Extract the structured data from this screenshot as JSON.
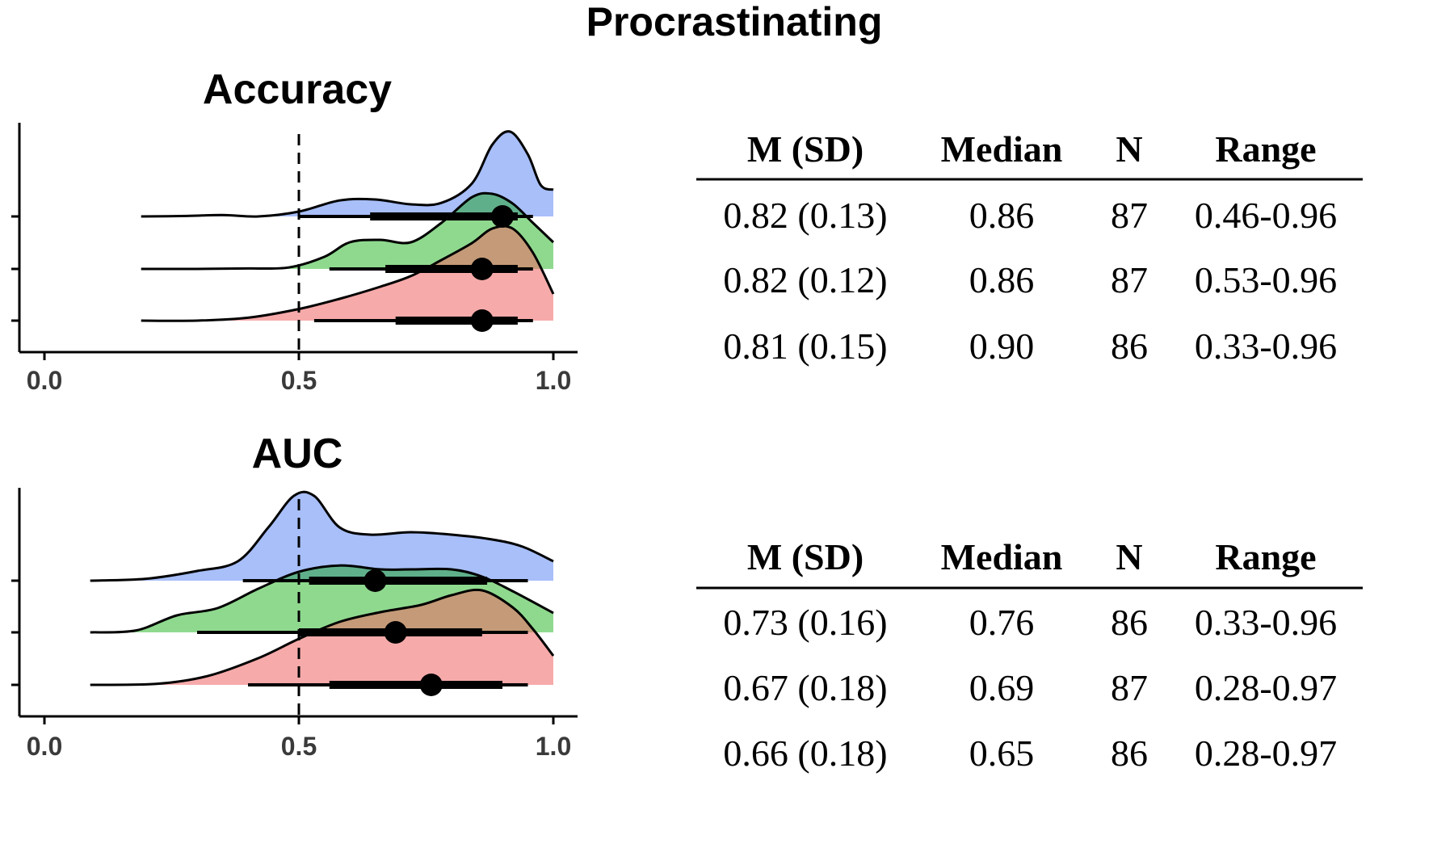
{
  "figure_title": "Procrastinating",
  "colors": {
    "series_top": "#a8bff9",
    "series_middle": "#8fd98f",
    "series_bottom": "#f7aaaa",
    "overlap_top_middle": "#5fb08a",
    "overlap_middle_bottom": "#c49a78",
    "outline": "#000000",
    "reference_line": "#000000"
  },
  "chart_data": [
    {
      "type": "ridgeline",
      "title": "Accuracy",
      "xlim": [
        0.0,
        1.0
      ],
      "x_ticks": [
        "0.0",
        "0.5",
        "1.0"
      ],
      "reference_line_x": 0.5,
      "grid": false,
      "legend": "none",
      "series": [
        {
          "color": "series_top",
          "density": [
            [
              0.19,
              0.0
            ],
            [
              0.28,
              0.01
            ],
            [
              0.35,
              0.03
            ],
            [
              0.42,
              0.0
            ],
            [
              0.5,
              0.1
            ],
            [
              0.58,
              0.33
            ],
            [
              0.65,
              0.35
            ],
            [
              0.72,
              0.25
            ],
            [
              0.78,
              0.28
            ],
            [
              0.84,
              0.68
            ],
            [
              0.88,
              1.48
            ],
            [
              0.915,
              1.75
            ],
            [
              0.95,
              1.28
            ],
            [
              0.975,
              0.65
            ],
            [
              1.0,
              0.55
            ]
          ],
          "point": 0.9,
          "interval_thick": [
            0.64,
            0.93
          ],
          "interval_thin": [
            0.5,
            0.96
          ]
        },
        {
          "color": "series_middle",
          "density": [
            [
              0.19,
              0.0
            ],
            [
              0.3,
              0.0
            ],
            [
              0.4,
              0.01
            ],
            [
              0.48,
              0.03
            ],
            [
              0.55,
              0.25
            ],
            [
              0.6,
              0.55
            ],
            [
              0.66,
              0.6
            ],
            [
              0.72,
              0.55
            ],
            [
              0.78,
              0.95
            ],
            [
              0.84,
              1.48
            ],
            [
              0.88,
              1.55
            ],
            [
              0.92,
              1.35
            ],
            [
              0.96,
              0.95
            ],
            [
              1.0,
              0.55
            ]
          ],
          "point": 0.86,
          "interval_thick": [
            0.67,
            0.93
          ],
          "interval_thin": [
            0.56,
            0.96
          ]
        },
        {
          "color": "series_bottom",
          "density": [
            [
              0.19,
              0.0
            ],
            [
              0.3,
              0.0
            ],
            [
              0.4,
              0.06
            ],
            [
              0.5,
              0.24
            ],
            [
              0.58,
              0.45
            ],
            [
              0.66,
              0.7
            ],
            [
              0.72,
              0.92
            ],
            [
              0.78,
              1.25
            ],
            [
              0.84,
              1.6
            ],
            [
              0.88,
              1.9
            ],
            [
              0.92,
              1.9
            ],
            [
              0.96,
              1.4
            ],
            [
              1.0,
              0.55
            ]
          ],
          "point": 0.86,
          "interval_thick": [
            0.69,
            0.93
          ],
          "interval_thin": [
            0.53,
            0.96
          ]
        }
      ],
      "table": {
        "columns": [
          "M (SD)",
          "Median",
          "N",
          "Range"
        ],
        "rows": [
          [
            "0.82 (0.13)",
            "0.86",
            "87",
            "0.46-0.96"
          ],
          [
            "0.82 (0.12)",
            "0.86",
            "87",
            "0.53-0.96"
          ],
          [
            "0.81 (0.15)",
            "0.90",
            "86",
            "0.33-0.96"
          ]
        ]
      }
    },
    {
      "type": "ridgeline",
      "title": "AUC",
      "xlim": [
        0.0,
        1.0
      ],
      "x_ticks": [
        "0.0",
        "0.5",
        "1.0"
      ],
      "reference_line_x": 0.5,
      "grid": false,
      "legend": "none",
      "series": [
        {
          "color": "series_top",
          "density": [
            [
              0.09,
              0.0
            ],
            [
              0.2,
              0.04
            ],
            [
              0.3,
              0.2
            ],
            [
              0.38,
              0.4
            ],
            [
              0.44,
              1.1
            ],
            [
              0.49,
              1.75
            ],
            [
              0.53,
              1.75
            ],
            [
              0.58,
              1.1
            ],
            [
              0.64,
              0.95
            ],
            [
              0.72,
              1.0
            ],
            [
              0.8,
              0.95
            ],
            [
              0.88,
              0.85
            ],
            [
              0.94,
              0.7
            ],
            [
              1.0,
              0.4
            ]
          ],
          "point": 0.65,
          "interval_thick": [
            0.52,
            0.87
          ],
          "interval_thin": [
            0.39,
            0.95
          ]
        },
        {
          "color": "series_middle",
          "density": [
            [
              0.09,
              0.0
            ],
            [
              0.18,
              0.04
            ],
            [
              0.26,
              0.35
            ],
            [
              0.34,
              0.5
            ],
            [
              0.42,
              0.9
            ],
            [
              0.5,
              1.25
            ],
            [
              0.58,
              1.38
            ],
            [
              0.66,
              1.3
            ],
            [
              0.72,
              1.3
            ],
            [
              0.8,
              1.3
            ],
            [
              0.86,
              1.15
            ],
            [
              0.92,
              0.85
            ],
            [
              1.0,
              0.4
            ]
          ],
          "point": 0.69,
          "interval_thick": [
            0.5,
            0.86
          ],
          "interval_thin": [
            0.3,
            0.95
          ]
        },
        {
          "color": "series_bottom",
          "density": [
            [
              0.09,
              0.0
            ],
            [
              0.22,
              0.02
            ],
            [
              0.32,
              0.18
            ],
            [
              0.42,
              0.55
            ],
            [
              0.5,
              0.95
            ],
            [
              0.58,
              1.3
            ],
            [
              0.66,
              1.5
            ],
            [
              0.74,
              1.65
            ],
            [
              0.8,
              1.85
            ],
            [
              0.86,
              1.95
            ],
            [
              0.92,
              1.6
            ],
            [
              0.96,
              1.15
            ],
            [
              1.0,
              0.6
            ]
          ],
          "point": 0.76,
          "interval_thick": [
            0.56,
            0.9
          ],
          "interval_thin": [
            0.4,
            0.95
          ]
        }
      ],
      "table": {
        "columns": [
          "M (SD)",
          "Median",
          "N",
          "Range"
        ],
        "rows": [
          [
            "0.73 (0.16)",
            "0.76",
            "86",
            "0.33-0.96"
          ],
          [
            "0.67 (0.18)",
            "0.69",
            "87",
            "0.28-0.97"
          ],
          [
            "0.66 (0.18)",
            "0.65",
            "86",
            "0.28-0.97"
          ]
        ]
      }
    }
  ]
}
